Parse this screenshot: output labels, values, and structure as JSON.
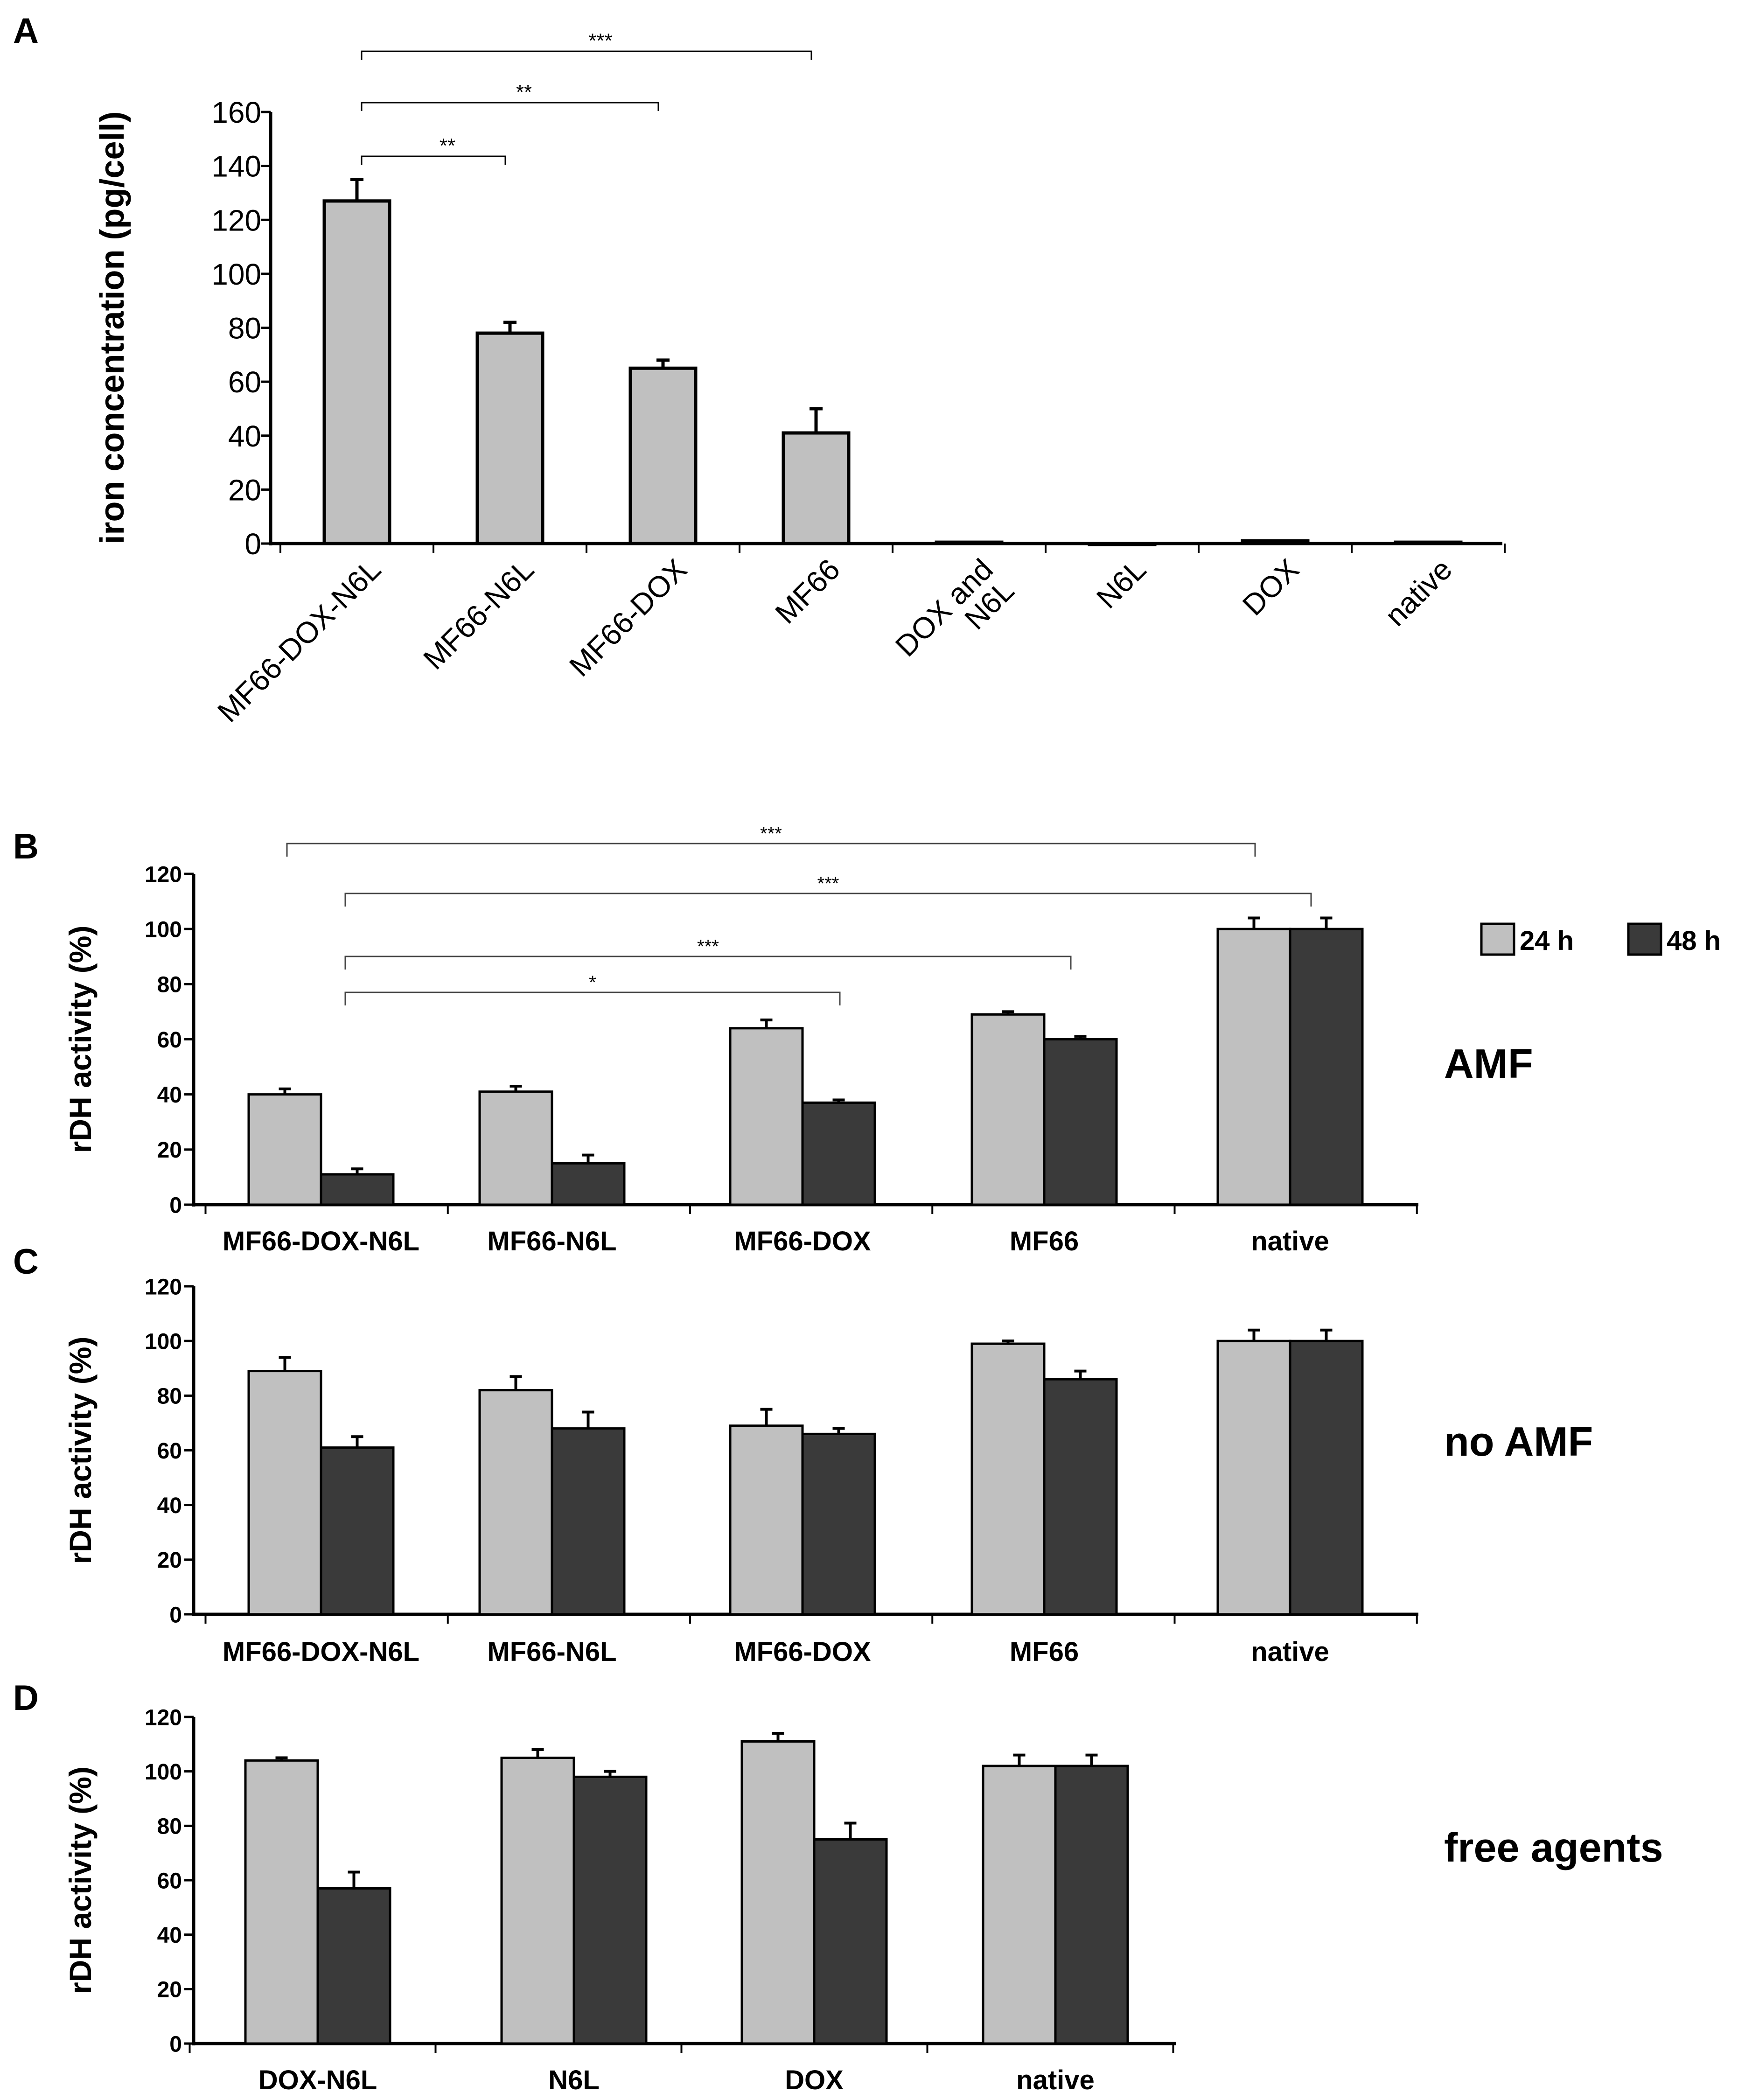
{
  "colors": {
    "light_bar": "#c0c0c0",
    "dark_bar": "#3a3a3a",
    "axis": "#000000"
  },
  "legend": {
    "items": [
      "24 h",
      "48 h"
    ],
    "placement": "top-right"
  },
  "chart_data": [
    {
      "panel": "A",
      "type": "bar",
      "ylabel": "iron concentration  (pg/cell)",
      "ylim": [
        0,
        160
      ],
      "yticks": [
        "0",
        "20",
        "40",
        "60",
        "80",
        "100",
        "120",
        "140",
        "160"
      ],
      "categories": [
        "MF66-DOX-N6L",
        "MF66-N6L",
        "MF66-DOX",
        "MF66",
        "DOX and\nN6L",
        "N6L",
        "DOX",
        "native"
      ],
      "values": [
        127,
        78,
        65,
        41,
        0.5,
        0,
        1,
        0.5
      ],
      "errors": [
        8,
        4,
        3,
        9,
        0,
        0,
        0,
        0
      ],
      "significance": [
        {
          "from": "MF66-DOX-N6L",
          "to": "MF66-N6L",
          "label": "**"
        },
        {
          "from": "MF66-DOX-N6L",
          "to": "MF66-DOX",
          "label": "**"
        },
        {
          "from": "MF66-DOX-N6L",
          "to": "MF66",
          "label": "***"
        }
      ]
    },
    {
      "panel": "B",
      "type": "bar",
      "annotation": "AMF",
      "ylabel": "rDH activity (%)",
      "ylim": [
        0,
        120
      ],
      "yticks": [
        "0",
        "20",
        "40",
        "60",
        "80",
        "100",
        "120"
      ],
      "categories": [
        "MF66-DOX-N6L",
        "MF66-N6L",
        "MF66-DOX",
        "MF66",
        "native"
      ],
      "series": [
        {
          "name": "24 h",
          "values": [
            40,
            41,
            64,
            69,
            100
          ],
          "errors": [
            2,
            2,
            3,
            1,
            4
          ]
        },
        {
          "name": "48 h",
          "values": [
            11,
            15,
            37,
            60,
            100
          ],
          "errors": [
            2,
            3,
            1,
            1,
            4
          ]
        }
      ],
      "significance": [
        {
          "label": "***"
        },
        {
          "label": "***"
        },
        {
          "label": "***"
        },
        {
          "label": "*"
        }
      ]
    },
    {
      "panel": "C",
      "type": "bar",
      "annotation": "no AMF",
      "ylabel": "rDH activity (%)",
      "ylim": [
        0,
        120
      ],
      "yticks": [
        "0",
        "20",
        "40",
        "60",
        "80",
        "100",
        "120"
      ],
      "categories": [
        "MF66-DOX-N6L",
        "MF66-N6L",
        "MF66-DOX",
        "MF66",
        "native"
      ],
      "series": [
        {
          "name": "24 h",
          "values": [
            89,
            82,
            69,
            99,
            100
          ],
          "errors": [
            5,
            5,
            6,
            1,
            4
          ]
        },
        {
          "name": "48 h",
          "values": [
            61,
            68,
            66,
            86,
            100
          ],
          "errors": [
            4,
            6,
            2,
            3,
            4
          ]
        }
      ]
    },
    {
      "panel": "D",
      "type": "bar",
      "annotation": "free agents",
      "ylabel": "rDH activity (%)",
      "ylim": [
        0,
        120
      ],
      "yticks": [
        "0",
        "20",
        "40",
        "60",
        "80",
        "100",
        "120"
      ],
      "categories": [
        "DOX-N6L",
        "N6L",
        "DOX",
        "native"
      ],
      "series": [
        {
          "name": "24 h",
          "values": [
            104,
            105,
            111,
            102
          ],
          "errors": [
            1,
            3,
            3,
            4
          ]
        },
        {
          "name": "48 h",
          "values": [
            57,
            98,
            75,
            102
          ],
          "errors": [
            6,
            2,
            6,
            4
          ]
        }
      ]
    }
  ]
}
